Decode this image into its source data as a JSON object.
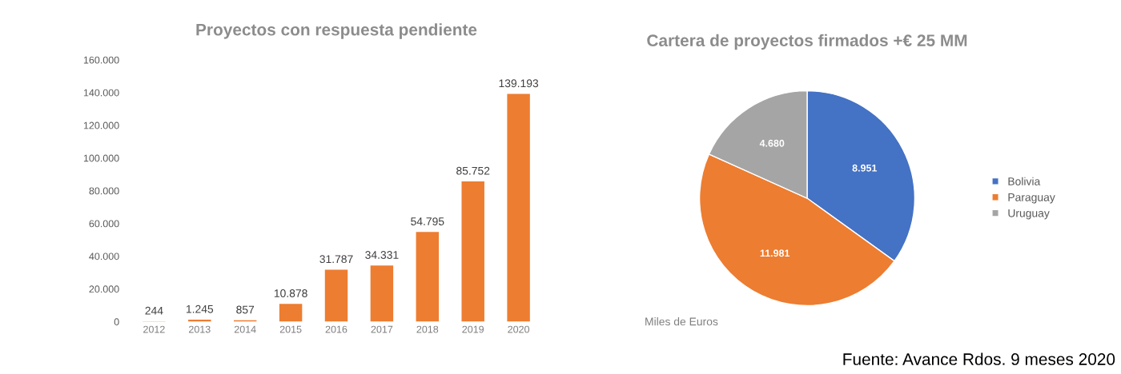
{
  "chart_data": [
    {
      "type": "bar",
      "title": "Proyectos con respuesta pendiente",
      "categories": [
        "2012",
        "2013",
        "2014",
        "2015",
        "2016",
        "2017",
        "2018",
        "2019",
        "2020"
      ],
      "values": [
        244,
        1245,
        857,
        10878,
        31787,
        34331,
        54795,
        85752,
        139193
      ],
      "value_labels": [
        "244",
        "1.245",
        "857",
        "10.878",
        "31.787",
        "34.331",
        "54.795",
        "85.752",
        "139.193"
      ],
      "color": "#ed7d31",
      "ylim": [
        0,
        160000
      ],
      "yticks": [
        0,
        {
          "value": 20000,
          "label": "20.000"
        },
        {
          "value": 40000,
          "label": "40.000"
        },
        {
          "value": 60000,
          "label": "60.000"
        },
        {
          "value": 80000,
          "label": "80.000"
        },
        {
          "value": 100000,
          "label": "100.000"
        },
        {
          "value": 120000,
          "label": "120.000"
        },
        {
          "value": 140000,
          "label": "140.000"
        },
        {
          "value": 160000,
          "label": "160.000"
        }
      ],
      "grid": false
    },
    {
      "type": "pie",
      "title": "Cartera de proyectos firmados +€ 25 MM",
      "categories": [
        "Bolivia",
        "Paraguay",
        "Uruguay"
      ],
      "values": [
        8951,
        11981,
        4680
      ],
      "value_labels": [
        "8.951",
        "11.981",
        "4.680"
      ],
      "colors": [
        "#4472c4",
        "#ed7d31",
        "#a5a5a5"
      ],
      "legend": "right",
      "annotations": [
        "Miles de Euros",
        "Fuente: Avance Rdos. 9 meses 2020"
      ]
    }
  ]
}
